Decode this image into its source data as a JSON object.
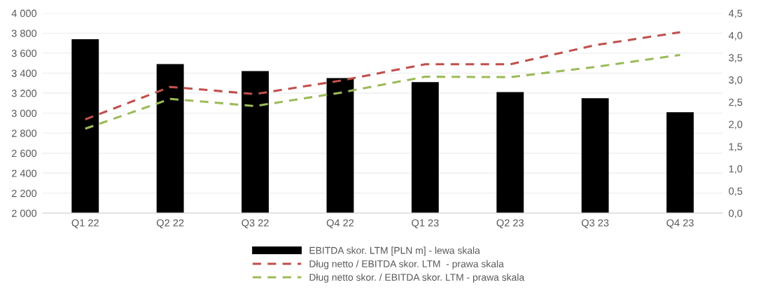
{
  "chart_data": {
    "type": "bar",
    "categories": [
      "Q1 22",
      "Q2 22",
      "Q3 22",
      "Q4 22",
      "Q1 23",
      "Q2 23",
      "Q3 23",
      "Q4 23"
    ],
    "series": [
      {
        "name": "EBITDA skor. LTM [PLN m] - lewa skala",
        "color": "#000000",
        "values": [
          3740,
          3490,
          3420,
          3350,
          3310,
          3210,
          3150,
          3010
        ]
      },
      {
        "name": "Dług netto / EBITDA skor. LTM  - prawa skala",
        "type": "line",
        "axis": "y2",
        "line_style": "dashed",
        "color": "#c0504d",
        "values": [
          2.11,
          2.84,
          2.68,
          2.98,
          3.35,
          3.35,
          3.78,
          4.07
        ]
      },
      {
        "name": "Dług netto skor. / EBITDA skor. LTM - prawa skala",
        "type": "line",
        "axis": "y2",
        "line_style": "dashed",
        "color": "#9bbb59",
        "values": [
          1.9,
          2.57,
          2.41,
          2.71,
          3.07,
          3.06,
          3.29,
          3.56
        ]
      }
    ],
    "ylim": [
      2000,
      4000
    ],
    "yticks": [
      {
        "value": 2000,
        "label": "2 000"
      },
      {
        "value": 2200,
        "label": "2 200"
      },
      {
        "value": 2400,
        "label": "2 400"
      },
      {
        "value": 2600,
        "label": "2 600"
      },
      {
        "value": 2800,
        "label": "2 800"
      },
      {
        "value": 3000,
        "label": "3 000"
      },
      {
        "value": 3200,
        "label": "3 200"
      },
      {
        "value": 3400,
        "label": "3 400"
      },
      {
        "value": 3600,
        "label": "3 600"
      },
      {
        "value": 3800,
        "label": "3 800"
      },
      {
        "value": 4000,
        "label": "4 000"
      }
    ],
    "y2lim": [
      0,
      4.5
    ],
    "y2ticks": [
      {
        "value": 0,
        "label": "0,0"
      },
      {
        "value": 0.5,
        "label": "0,5"
      },
      {
        "value": 1,
        "label": "1,0"
      },
      {
        "value": 1.5,
        "label": "1,5"
      },
      {
        "value": 2,
        "label": "2,0"
      },
      {
        "value": 2.5,
        "label": "2,5"
      },
      {
        "value": 3,
        "label": "3,0"
      },
      {
        "value": 3.5,
        "label": "3,5"
      },
      {
        "value": 4,
        "label": "4,0"
      },
      {
        "value": 4.5,
        "label": "4,5"
      }
    ],
    "grid": "y",
    "legend": "bottom"
  }
}
